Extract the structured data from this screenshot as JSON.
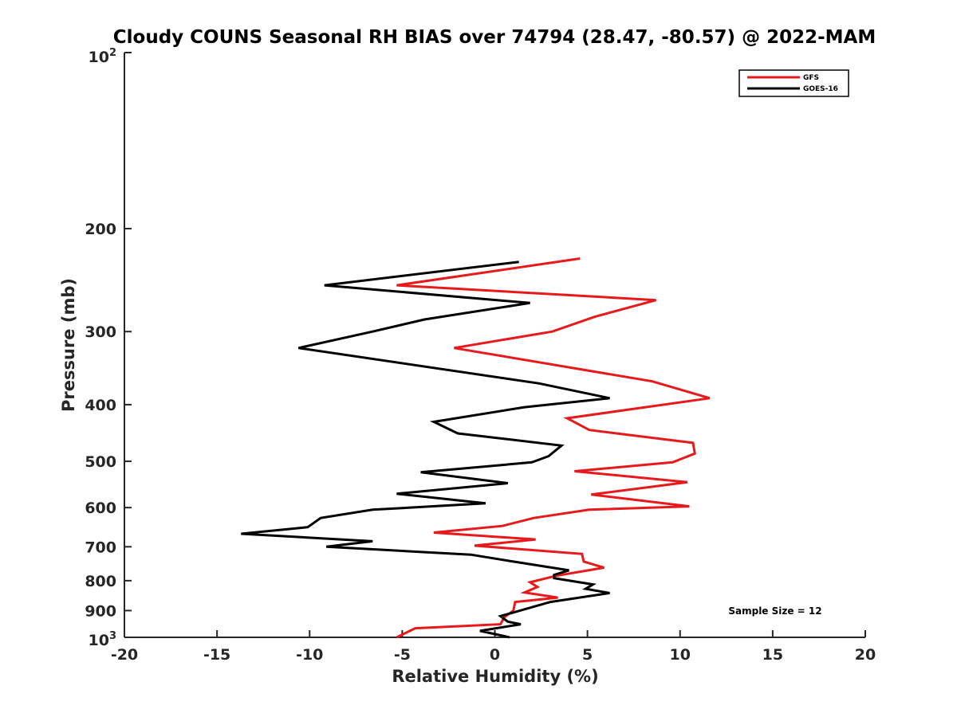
{
  "chart_data": {
    "type": "line",
    "title": "Cloudy COUNS Seasonal RH BIAS over 74794 (28.47, -80.57) @ 2022-MAM",
    "xlabel": "Relative Humidity (%)",
    "ylabel": "Pressure (mb)",
    "xlim": [
      -20,
      20
    ],
    "ylim": [
      1000,
      100
    ],
    "yscale": "log",
    "x_ticks": [
      -20,
      -15,
      -10,
      -5,
      0,
      5,
      10,
      15,
      20
    ],
    "x_tick_labels": [
      "-20",
      "-15",
      "-10",
      "-5",
      "0",
      "5",
      "10",
      "15",
      "20"
    ],
    "y_ticks": [
      100,
      200,
      300,
      400,
      500,
      600,
      700,
      800,
      900,
      1000
    ],
    "y_tick_labels": [
      "",
      "200",
      "300",
      "400",
      "500",
      "600",
      "700",
      "800",
      "900",
      ""
    ],
    "y_top_label": {
      "base": "10",
      "exp": "2"
    },
    "y_bottom_label": {
      "base": "10",
      "exp": "3"
    },
    "legend_position": "top-right",
    "annotation": "Sample Size = 12",
    "series": [
      {
        "name": "GFS",
        "color": "#e8191b",
        "points": [
          [
            4.6,
            225
          ],
          [
            -5.3,
            250
          ],
          [
            8.7,
            265
          ],
          [
            5.4,
            283
          ],
          [
            3.1,
            300
          ],
          [
            -2.2,
            320
          ],
          [
            8.5,
            365
          ],
          [
            11.6,
            390
          ],
          [
            7.9,
            405
          ],
          [
            3.9,
            422
          ],
          [
            5.1,
            442
          ],
          [
            10.7,
            465
          ],
          [
            10.8,
            485
          ],
          [
            9.6,
            502
          ],
          [
            4.3,
            520
          ],
          [
            10.4,
            543
          ],
          [
            5.2,
            570
          ],
          [
            10.5,
            597
          ],
          [
            5.1,
            605
          ],
          [
            2.1,
            625
          ],
          [
            0.4,
            645
          ],
          [
            -3.3,
            662
          ],
          [
            2.2,
            680
          ],
          [
            -1.1,
            697
          ],
          [
            4.7,
            720
          ],
          [
            4.8,
            742
          ],
          [
            5.9,
            760
          ],
          [
            3.3,
            785
          ],
          [
            1.9,
            805
          ],
          [
            2.3,
            820
          ],
          [
            1.6,
            838
          ],
          [
            3.4,
            855
          ],
          [
            1.1,
            870
          ],
          [
            1.0,
            900
          ],
          [
            0.5,
            925
          ],
          [
            0.3,
            950
          ],
          [
            -4.3,
            965
          ],
          [
            -5.3,
            1000
          ]
        ]
      },
      {
        "name": "GOES-16",
        "color": "#000000",
        "points": [
          [
            1.3,
            228
          ],
          [
            -9.2,
            250
          ],
          [
            1.9,
            268
          ],
          [
            -3.8,
            286
          ],
          [
            -6.6,
            300
          ],
          [
            -10.6,
            320
          ],
          [
            2.4,
            368
          ],
          [
            6.2,
            390
          ],
          [
            1.6,
            404
          ],
          [
            -3.3,
            428
          ],
          [
            -2.0,
            448
          ],
          [
            3.6,
            470
          ],
          [
            2.9,
            490
          ],
          [
            2.0,
            502
          ],
          [
            -4.0,
            522
          ],
          [
            0.7,
            545
          ],
          [
            -5.3,
            568
          ],
          [
            -0.5,
            590
          ],
          [
            -6.6,
            605
          ],
          [
            -9.4,
            625
          ],
          [
            -10.1,
            648
          ],
          [
            -13.7,
            665
          ],
          [
            -6.6,
            685
          ],
          [
            -9.1,
            700
          ],
          [
            -1.3,
            722
          ],
          [
            1.0,
            742
          ],
          [
            4.0,
            768
          ],
          [
            3.2,
            782
          ],
          [
            3.2,
            792
          ],
          [
            5.3,
            812
          ],
          [
            4.9,
            826
          ],
          [
            6.2,
            840
          ],
          [
            3.0,
            870
          ],
          [
            0.3,
            920
          ],
          [
            0.7,
            940
          ],
          [
            1.4,
            950
          ],
          [
            -0.8,
            975
          ],
          [
            0.8,
            1000
          ]
        ]
      }
    ]
  }
}
